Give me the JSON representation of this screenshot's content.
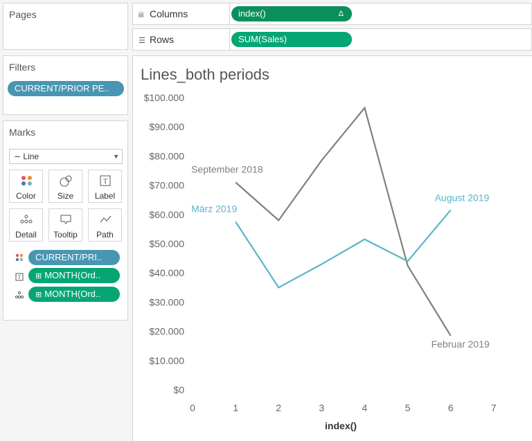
{
  "pages": {
    "title": "Pages"
  },
  "filters": {
    "title": "Filters",
    "pill": "CURRENT/PRIOR PE.."
  },
  "marks": {
    "title": "Marks",
    "mark_type": "Line",
    "buttons": {
      "color": "Color",
      "size": "Size",
      "label": "Label",
      "detail": "Detail",
      "tooltip": "Tooltip",
      "path": "Path"
    },
    "fields": [
      "CURRENT/PRI..",
      "MONTH(Ord..",
      "MONTH(Ord.."
    ]
  },
  "shelves": {
    "columns_label": "Columns",
    "columns_pill": "index()",
    "columns_pill_badge": "Δ",
    "rows_label": "Rows",
    "rows_pill": "SUM(Sales)"
  },
  "colors": {
    "gray_series": "#7f7f7f",
    "blue_series": "#5ab4c9"
  },
  "chart_data": {
    "type": "line",
    "title": "Lines_both periods",
    "xlabel": "index()",
    "ylabel": "",
    "xlim": [
      0,
      7
    ],
    "ylim": [
      0,
      100000
    ],
    "x_ticks": [
      "0",
      "1",
      "2",
      "3",
      "4",
      "5",
      "6",
      "7"
    ],
    "y_ticks": [
      "$100.000",
      "$90.000",
      "$80.000",
      "$70.000",
      "$60.000",
      "$50.000",
      "$40.000",
      "$30.000",
      "$20.000",
      "$10.000",
      "$0"
    ],
    "y_tick_values": [
      100000,
      90000,
      80000,
      70000,
      60000,
      50000,
      40000,
      30000,
      20000,
      10000,
      0
    ],
    "series": [
      {
        "name": "September 2018 - Februar 2019",
        "color": "#7f7f7f",
        "x": [
          1,
          2,
          3,
          4,
          5,
          6
        ],
        "values": [
          71000,
          58000,
          78500,
          96500,
          42500,
          18500
        ],
        "start_label": "September 2018",
        "end_label": "Februar 2019"
      },
      {
        "name": "März 2019 - August 2019",
        "color": "#5ab4c9",
        "x": [
          1,
          2,
          3,
          4,
          5,
          6
        ],
        "values": [
          57500,
          35000,
          43000,
          51500,
          44000,
          61500
        ],
        "start_label": "März 2019",
        "end_label": "August 2019"
      }
    ]
  }
}
